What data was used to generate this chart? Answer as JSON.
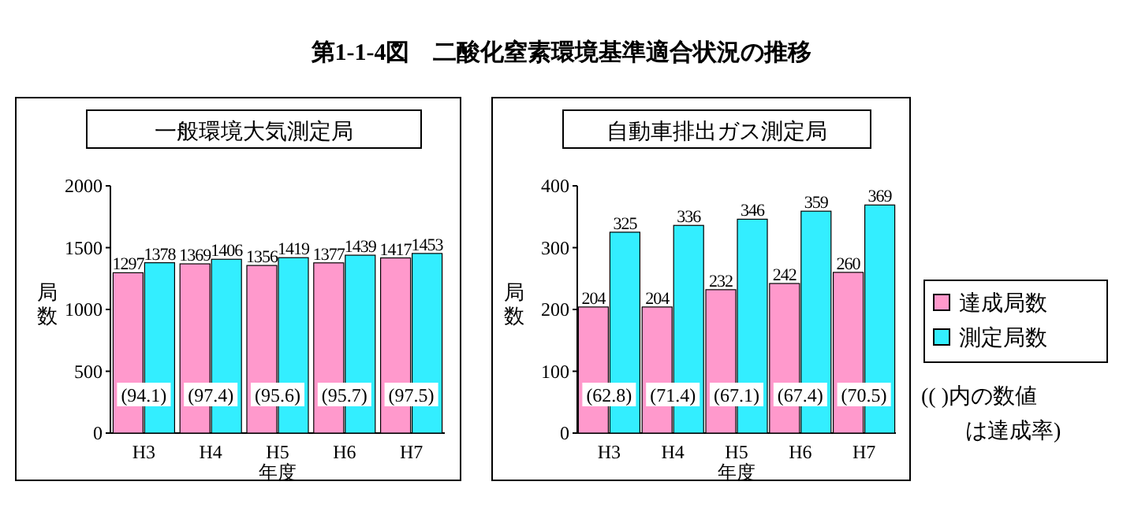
{
  "chart_data": [
    {
      "type": "bar",
      "title": "第1-1-4図　二酸化窒素環境基準適合状況の推移",
      "subtitle": "一般環境大気測定局",
      "categories": [
        "H3",
        "H4",
        "H5",
        "H6",
        "H7"
      ],
      "series": [
        {
          "color": "#ff99cc",
          "values": [
            1297,
            1369,
            1356,
            1377,
            1417
          ]
        },
        {
          "color": "#33eeff",
          "values": [
            1378,
            1406,
            1419,
            1439,
            1453
          ]
        }
      ],
      "ylim": [
        0,
        2000
      ],
      "yticks": [
        0,
        500,
        1000,
        1500,
        2000
      ],
      "ylabel": "局数",
      "xlabel": "年度",
      "data_labels": true,
      "annotations": [
        {
          "text": "(94.1)",
          "x": "H3"
        },
        {
          "text": "(97.4)",
          "x": "H4"
        },
        {
          "text": "(95.6)",
          "x": "H5"
        },
        {
          "text": "(95.7)",
          "x": "H6"
        },
        {
          "text": "(97.5)",
          "x": "H7"
        }
      ]
    },
    {
      "type": "bar",
      "subtitle": "自動車排出ガス測定局",
      "categories": [
        "H3",
        "H4",
        "H5",
        "H6",
        "H7"
      ],
      "series": [
        {
          "name": "達成局数",
          "color": "#ff99cc",
          "values": [
            204,
            204,
            232,
            242,
            260
          ]
        },
        {
          "name": "測定局数",
          "color": "#33eeff",
          "values": [
            325,
            336,
            346,
            359,
            369
          ]
        }
      ],
      "ylim": [
        0,
        400
      ],
      "yticks": [
        0,
        100,
        200,
        300,
        400
      ],
      "ylabel": "局数",
      "xlabel": "年度",
      "data_labels": true,
      "legend": "right",
      "annotations": [
        {
          "text": "(62.8)",
          "x": "H3"
        },
        {
          "text": "(71.4)",
          "x": "H4"
        },
        {
          "text": "(67.1)",
          "x": "H5"
        },
        {
          "text": "(67.4)",
          "x": "H6"
        },
        {
          "text": "(70.5)",
          "x": "H7"
        },
        "(( )内の数値は達成率)"
      ]
    }
  ]
}
